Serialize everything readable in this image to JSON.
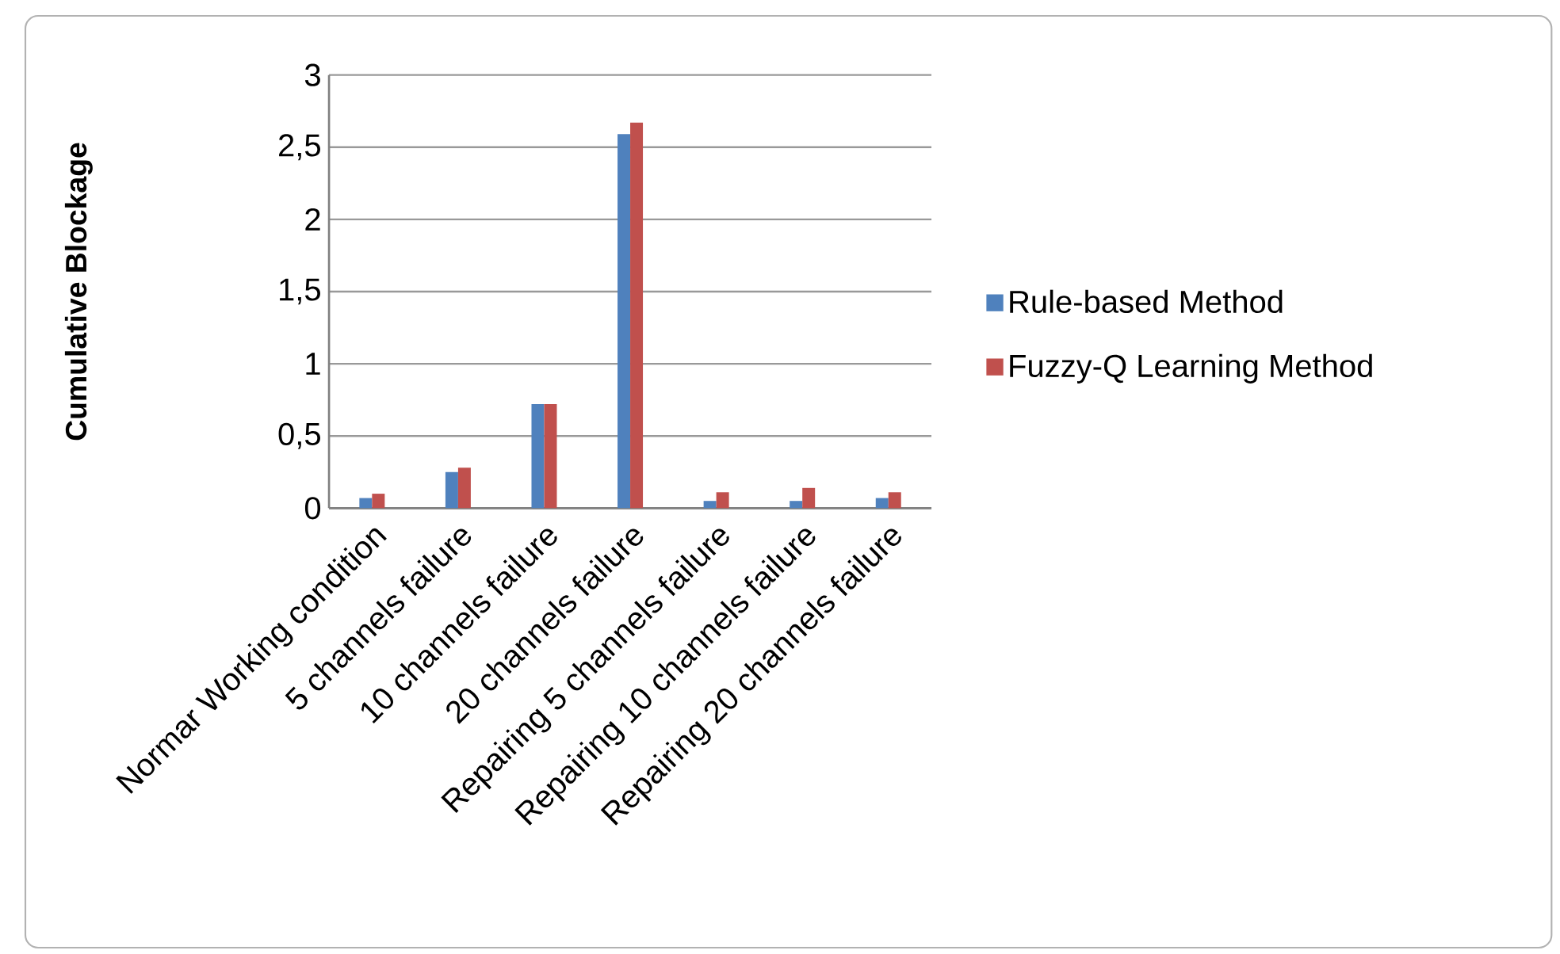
{
  "chart_data": {
    "type": "bar",
    "ylabel": "Cumulative Blockage",
    "categories": [
      "Normar Working condition",
      "5 channels failure",
      "10 channels failure",
      "20 channels failure",
      "Repairing 5 channels failure",
      "Repairing 10 channels failure",
      "Repairing 20 channels failure"
    ],
    "series": [
      {
        "name": "Rule-based Method",
        "color": "#4f81bd",
        "values": [
          0.07,
          0.25,
          0.72,
          2.59,
          0.05,
          0.05,
          0.07
        ]
      },
      {
        "name": "Fuzzy-Q Learning Method",
        "color": "#c0504d",
        "values": [
          0.1,
          0.28,
          0.72,
          2.67,
          0.11,
          0.14,
          0.11
        ]
      }
    ],
    "ylim": [
      0,
      3
    ],
    "yticks": [
      0,
      {
        "value": 0.5,
        "label": "0,5"
      },
      1,
      {
        "value": 1.5,
        "label": "1,5"
      },
      2,
      {
        "value": 2.5,
        "label": "2,5"
      },
      3
    ],
    "grid": "y",
    "legend": "right"
  }
}
